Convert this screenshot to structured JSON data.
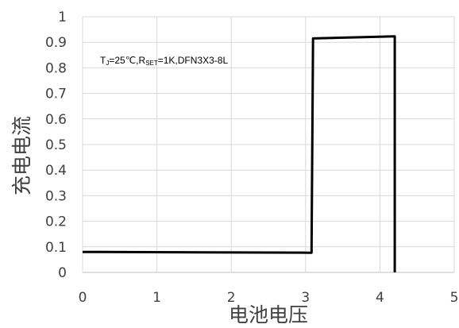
{
  "chart_data": {
    "type": "line",
    "title": "",
    "xlabel": "电池电压",
    "ylabel": "充电电流",
    "xlim": [
      0,
      5
    ],
    "ylim": [
      0,
      1
    ],
    "x_ticks": [
      "0",
      "1",
      "2",
      "3",
      "4",
      "5"
    ],
    "y_ticks": [
      "0",
      "0.1",
      "0.2",
      "0.3",
      "0.4",
      "0.5",
      "0.6",
      "0.7",
      "0.8",
      "0.9",
      "1"
    ],
    "grid": true,
    "legend": "none",
    "annotation": {
      "t": "T",
      "t_sub": "J",
      "cond": "=25℃,R",
      "r_sub": "SET",
      "rest": "=1K,DFN3X3-8L"
    },
    "series": [
      {
        "color": "#000000",
        "x": [
          0,
          3.05,
          3.08,
          3.1,
          4.2,
          4.2
        ],
        "y": [
          0.08,
          0.077,
          0.077,
          0.915,
          0.923,
          0
        ]
      }
    ]
  }
}
